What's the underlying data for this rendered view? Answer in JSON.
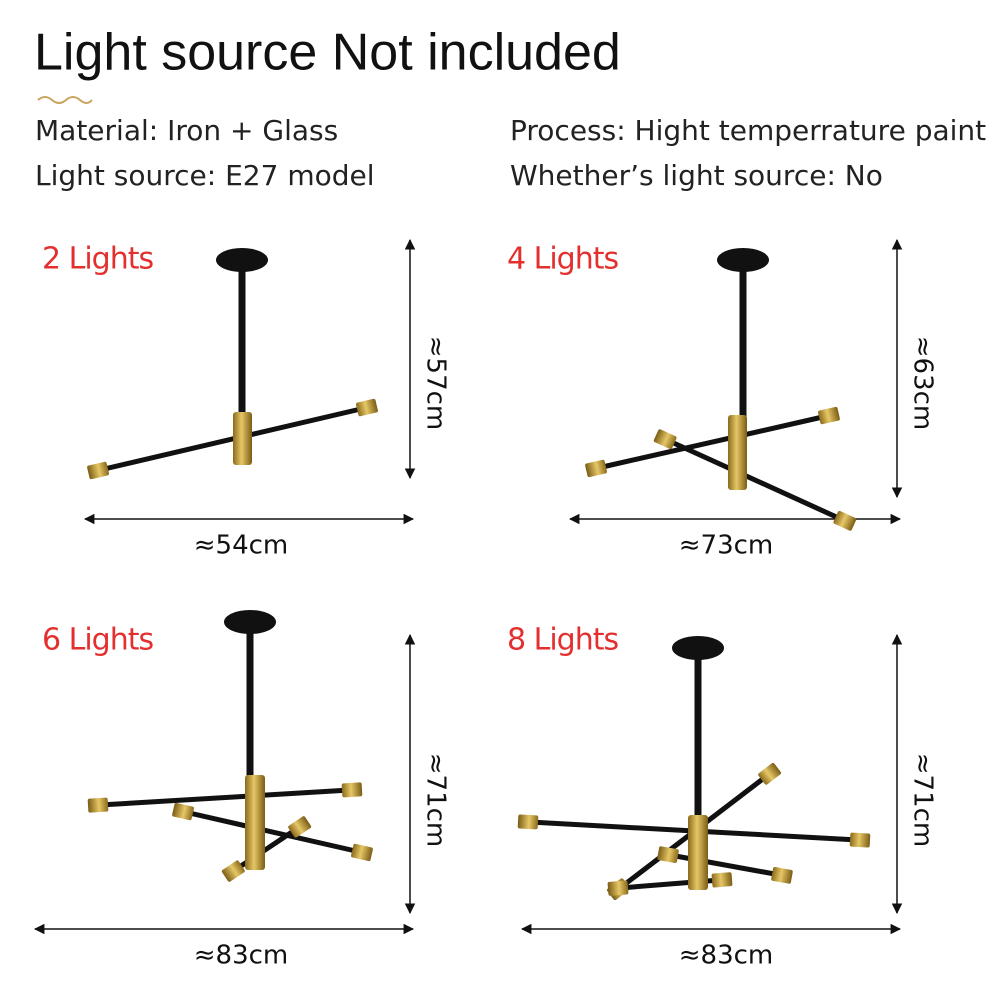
{
  "header": {
    "title": "Light source Not included"
  },
  "specs": {
    "material": "Material: Iron + Glass",
    "process": "Process: Hight temperrature paint",
    "light_source": "Light source:  E27 model",
    "whether": "Whether’s light source: No"
  },
  "variants": [
    {
      "label": "2 Lights",
      "height": "≈57cm",
      "width": "≈54cm"
    },
    {
      "label": "4 Lights",
      "height": "≈63cm",
      "width": "≈73cm"
    },
    {
      "label": "6 Lights",
      "height": "≈71cm",
      "width": "≈83cm"
    },
    {
      "label": "8 Lights",
      "height": "≈71cm",
      "width": "≈83cm"
    }
  ]
}
